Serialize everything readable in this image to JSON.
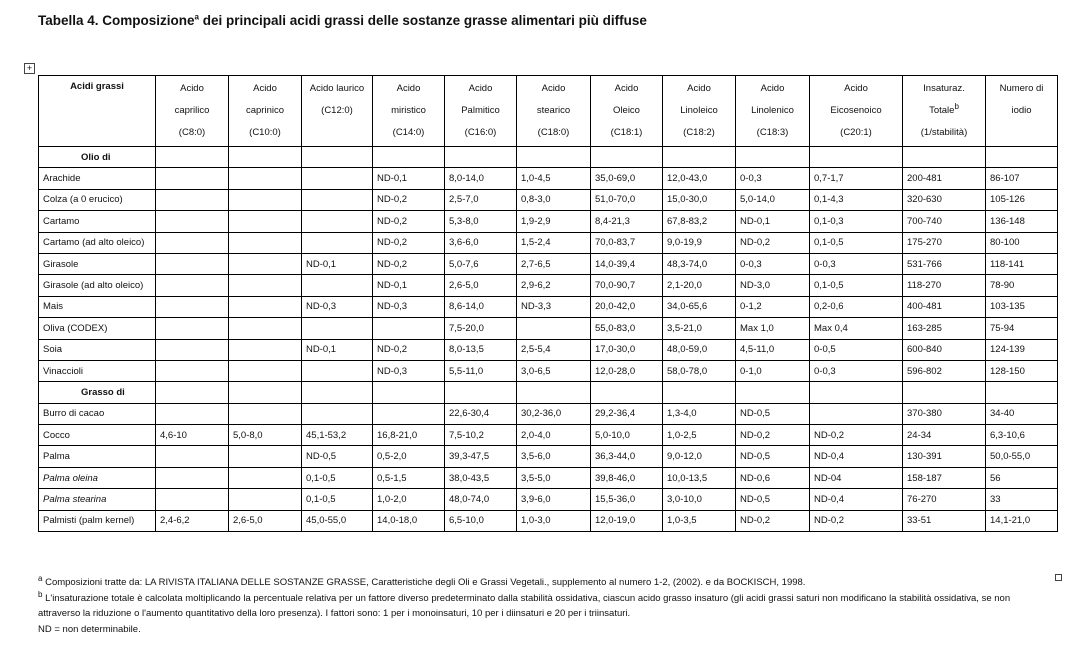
{
  "header": {
    "title": "Tabella 4. Composizione",
    "title_sup": "a",
    "title_rest": "dei principali acidi grassi delle sostanze grasse alimentari più diffuse"
  },
  "table": {
    "columns": [
      [
        "Acidi grassi"
      ],
      [
        "Acido",
        "caprilico",
        "(C8:0)"
      ],
      [
        "Acido",
        "caprinico",
        "(C10:0)"
      ],
      [
        "Acido laurico",
        "(C12:0)"
      ],
      [
        "Acido",
        "miristico",
        "(C14:0)"
      ],
      [
        "Acido",
        "Palmitico",
        "(C16:0)"
      ],
      [
        "Acido",
        "stearico",
        "(C18:0)"
      ],
      [
        "Acido",
        "Oleico",
        "(C18:1)"
      ],
      [
        "Acido",
        "Linoleico",
        "(C18:2)"
      ],
      [
        "Acido",
        "Linolenico",
        "(C18:3)"
      ],
      [
        "Acido",
        "Eicosenoico",
        "(C20:1)"
      ],
      [
        "Insaturaz.",
        {
          "text": "Totale",
          "sup": "b"
        },
        "(1/stabilità)"
      ],
      [
        "Numero di",
        "iodio"
      ]
    ],
    "rows": [
      {
        "section": "Olio di"
      },
      {
        "cells": [
          "Arachide",
          null,
          null,
          null,
          "ND-0,1",
          "8,0-14,0",
          "1,0-4,5",
          "35,0-69,0",
          "12,0-43,0",
          "0-0,3",
          "0,7-1,7",
          "200-481",
          "86-107"
        ]
      },
      {
        "cells": [
          "Colza (a 0 erucico)",
          null,
          null,
          null,
          "ND-0,2",
          "2,5-7,0",
          "0,8-3,0",
          "51,0-70,0",
          "15,0-30,0",
          "5,0-14,0",
          "0,1-4,3",
          "320-630",
          "105-126"
        ]
      },
      {
        "cells": [
          "Cartamo",
          null,
          null,
          null,
          "ND-0,2",
          "5,3-8,0",
          "1,9-2,9",
          "8,4-21,3",
          "67,8-83,2",
          "ND-0,1",
          "0,1-0,3",
          "700-740",
          "136-148"
        ]
      },
      {
        "cells": [
          "Cartamo (ad alto oleico)",
          null,
          null,
          null,
          "ND-0,2",
          "3,6-6,0",
          "1,5-2,4",
          "70,0-83,7",
          "9,0-19,9",
          "ND-0,2",
          "0,1-0,5",
          "175-270",
          "80-100"
        ]
      },
      {
        "cells": [
          "Girasole",
          null,
          null,
          "ND-0,1",
          "ND-0,2",
          "5,0-7,6",
          "2,7-6,5",
          "14,0-39,4",
          "48,3-74,0",
          "0-0,3",
          "0-0,3",
          "531-766",
          "118-141"
        ]
      },
      {
        "cells": [
          "Girasole (ad alto oleico)",
          null,
          null,
          null,
          "ND-0,1",
          "2,6-5,0",
          "2,9-6,2",
          "70,0-90,7",
          "2,1-20,0",
          "ND-3,0",
          "0,1-0,5",
          "118-270",
          "78-90"
        ]
      },
      {
        "cells": [
          "Mais",
          null,
          null,
          "ND-0,3",
          "ND-0,3",
          "8,6-14,0",
          "ND-3,3",
          "20,0-42,0",
          "34,0-65,6",
          "0-1,2",
          "0,2-0,6",
          "400-481",
          "103-135"
        ]
      },
      {
        "cells": [
          "Oliva (CODEX)",
          null,
          null,
          null,
          null,
          "7,5-20,0",
          null,
          "55,0-83,0",
          "3,5-21,0",
          "Max 1,0",
          "Max 0,4",
          "163-285",
          "75-94"
        ]
      },
      {
        "cells": [
          "Soia",
          null,
          null,
          "ND-0,1",
          "ND-0,2",
          "8,0-13,5",
          "2,5-5,4",
          "17,0-30,0",
          "48,0-59,0",
          "4,5-11,0",
          "0-0,5",
          "600-840",
          "124-139"
        ]
      },
      {
        "cells": [
          "Vinaccioli",
          null,
          null,
          null,
          "ND-0,3",
          "5,5-11,0",
          "3,0-6,5",
          "12,0-28,0",
          "58,0-78,0",
          "0-1,0",
          "0-0,3",
          "596-802",
          "128-150"
        ]
      },
      {
        "section": "Grasso di"
      },
      {
        "cells": [
          "Burro di cacao",
          null,
          null,
          null,
          null,
          "22,6-30,4",
          "30,2-36,0",
          "29,2-36,4",
          "1,3-4,0",
          "ND-0,5",
          null,
          "370-380",
          "34-40"
        ]
      },
      {
        "cells": [
          "Cocco",
          "4,6-10",
          "5,0-8,0",
          "45,1-53,2",
          "16,8-21,0",
          "7,5-10,2",
          "2,0-4,0",
          "5,0-10,0",
          "1,0-2,5",
          "ND-0,2",
          "ND-0,2",
          "24-34",
          "6,3-10,6"
        ]
      },
      {
        "cells": [
          "Palma",
          null,
          null,
          "ND-0,5",
          "0,5-2,0",
          "39,3-47,5",
          "3,5-6,0",
          "36,3-44,0",
          "9,0-12,0",
          "ND-0,5",
          "ND-0,4",
          "130-391",
          "50,0-55,0"
        ]
      },
      {
        "cells": [
          "Palma oleina",
          null,
          null,
          "0,1-0,5",
          "0,5-1,5",
          "38,0-43,5",
          "3,5-5,0",
          "39,8-46,0",
          "10,0-13,5",
          "ND-0,6",
          "ND-04",
          "158-187",
          "56"
        ],
        "italic": true
      },
      {
        "cells": [
          "Palma stearina",
          null,
          null,
          "0,1-0,5",
          "1,0-2,0",
          "48,0-74,0",
          "3,9-6,0",
          "15,5-36,0",
          "3,0-10,0",
          "ND-0,5",
          "ND-0,4",
          "76-270",
          "33"
        ],
        "italic": true
      },
      {
        "cells": [
          "Palmisti (palm kernel)",
          "2,4-6,2",
          "2,6-5,0",
          "45,0-55,0",
          "14,0-18,0",
          "6,5-10,0",
          "1,0-3,0",
          "12,0-19,0",
          "1,0-3,5",
          "ND-0,2",
          "ND-0,2",
          "33-51",
          "14,1-21,0"
        ]
      }
    ]
  },
  "footnotes": [
    {
      "mark": "a",
      "text": "Composizioni tratte da: LA RIVISTA ITALIANA DELLE SOSTANZE GRASSE, Caratteristiche degli Oli e Grassi Vegetali., supplemento al numero 1-2, (2002).  e da BOCKISCH, 1998."
    },
    {
      "mark": "b",
      "text": "L'insaturazione totale è calcolata moltiplicando la percentuale relativa per un fattore diverso predeterminato dalla stabilità ossidativa, ciascun acido grasso insaturo (gli acidi grassi saturi non modificano la stabilità ossidativa, se non attraverso la riduzione o l'aumento quantitativo della loro presenza). I fattori sono: 1 per i monoinsaturi, 10 per i diinsaturi e 20 per i triinsaturi."
    },
    {
      "text": "ND = non determinabile."
    }
  ]
}
